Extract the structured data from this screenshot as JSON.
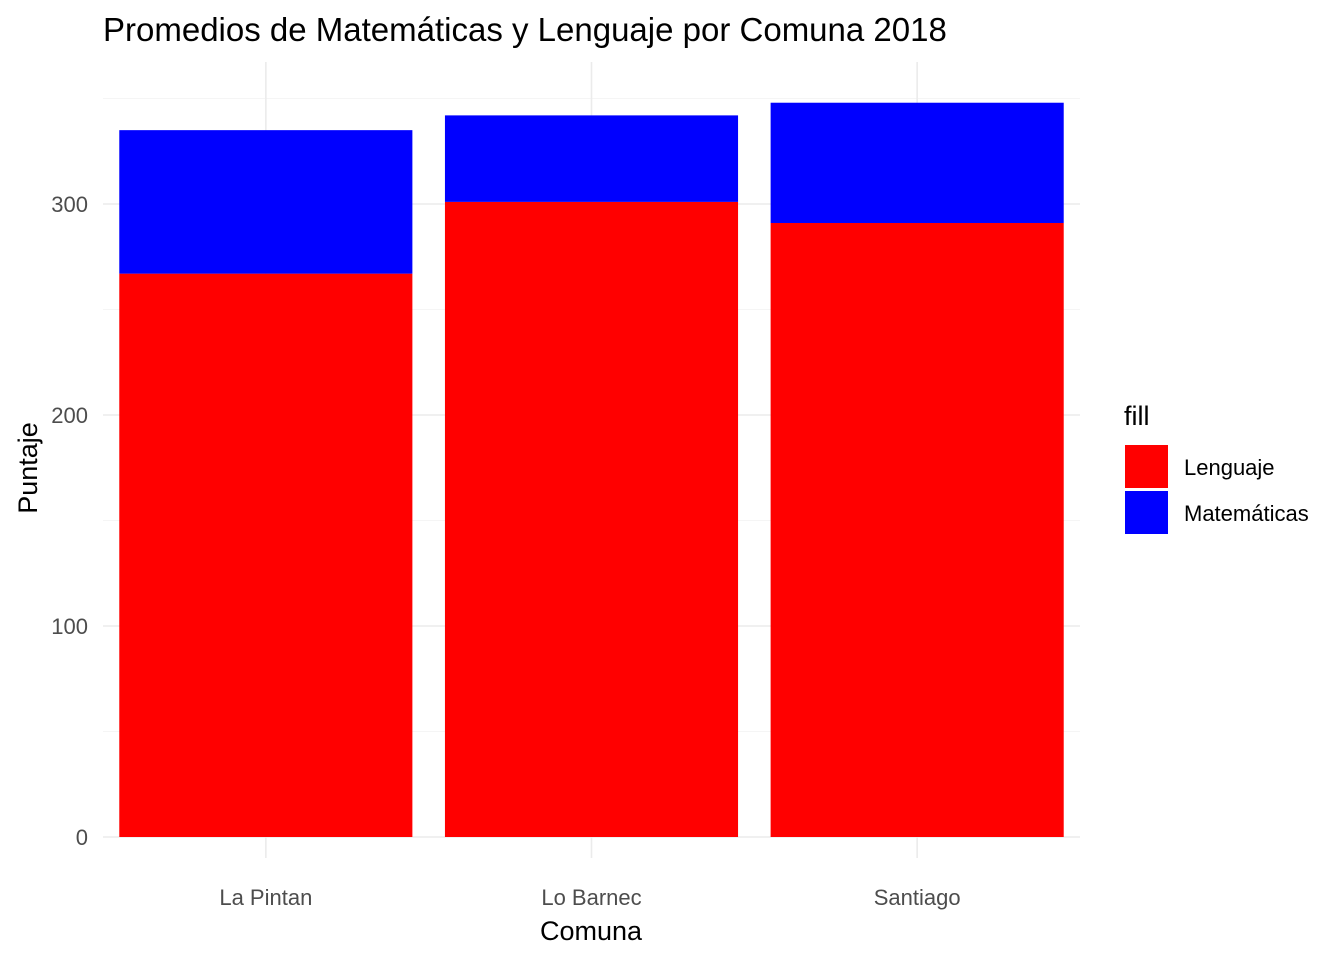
{
  "chart_data": {
    "type": "bar",
    "stacked": true,
    "title": "Promedios de Matemáticas y Lenguaje por Comuna 2018",
    "xlabel": "Comuna",
    "ylabel": "Puntaje",
    "categories": [
      "La Pintan",
      "Lo Barnec",
      "Santiago"
    ],
    "series": [
      {
        "name": "Lenguaje",
        "color": "#ff0000",
        "values": [
          267,
          301,
          291
        ]
      },
      {
        "name": "Matemáticas",
        "color": "#0000ff",
        "values": [
          68,
          41,
          57
        ]
      }
    ],
    "ylim": [
      0,
      350
    ],
    "yticks": [
      0,
      100,
      200,
      300
    ],
    "grid": true,
    "legend": {
      "title": "fill",
      "position": "right"
    }
  }
}
